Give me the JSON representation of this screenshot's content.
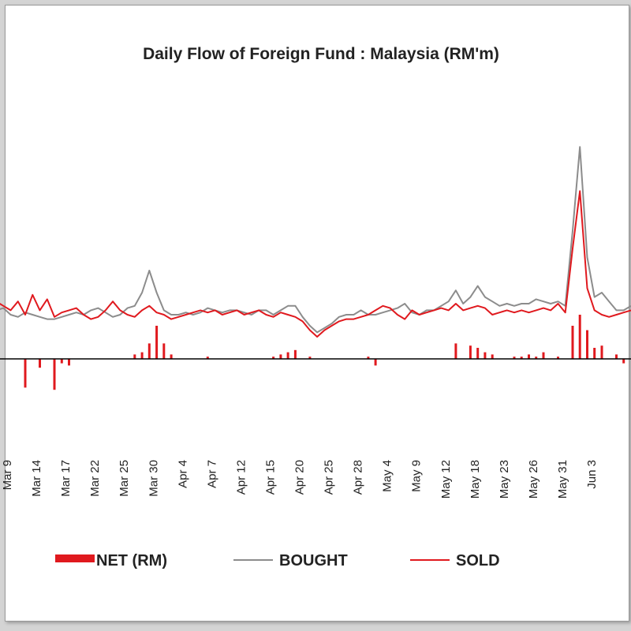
{
  "chart_data": {
    "type": "line",
    "title": "Daily Flow of Foreign Fund : Malaysia (RM'm)",
    "x_tick_labels": [
      "Mar 9",
      "Mar 14",
      "Mar 17",
      "Mar 22",
      "Mar 25",
      "Mar 30",
      "Apr 4",
      "Apr 7",
      "Apr 12",
      "Apr 15",
      "Apr 20",
      "Apr 25",
      "Apr 28",
      "May 4",
      "May 9",
      "May 12",
      "May 18",
      "May 23",
      "May 26",
      "May 31",
      "Jun 3"
    ],
    "legend": {
      "position": "bottom",
      "entries": [
        "NET (RM)",
        "BOUGHT",
        "SOLD"
      ]
    },
    "colors": {
      "net": "#e0191e",
      "bought": "#8c8c8c",
      "sold": "#e0191e"
    },
    "series": [
      {
        "name": "BOUGHT",
        "kind": "line",
        "values": [
          1100,
          1150,
          1000,
          950,
          1050,
          1000,
          950,
          900,
          900,
          950,
          1000,
          1050,
          1000,
          1100,
          1150,
          1050,
          950,
          1000,
          1150,
          1200,
          1500,
          2000,
          1500,
          1100,
          1000,
          1000,
          1050,
          1000,
          1050,
          1150,
          1100,
          1050,
          1100,
          1100,
          1050,
          1000,
          1100,
          1100,
          1000,
          1100,
          1200,
          1200,
          950,
          750,
          600,
          700,
          800,
          950,
          1000,
          1000,
          1100,
          1000,
          1000,
          1050,
          1100,
          1150,
          1250,
          1050,
          1000,
          1100,
          1100,
          1200,
          1300,
          1550,
          1250,
          1400,
          1650,
          1400,
          1300,
          1200,
          1250,
          1200,
          1250,
          1250,
          1350,
          1300,
          1250,
          1300,
          1200,
          2900,
          4800,
          2300,
          1400,
          1500,
          1300,
          1100,
          1100,
          1200
        ]
      },
      {
        "name": "SOLD",
        "kind": "line",
        "values": [
          1300,
          1200,
          1100,
          1300,
          1000,
          1450,
          1100,
          1350,
          950,
          1050,
          1100,
          1150,
          1000,
          900,
          950,
          1100,
          1300,
          1100,
          1000,
          950,
          1100,
          1200,
          1050,
          1000,
          900,
          950,
          1000,
          1050,
          1100,
          1050,
          1100,
          1000,
          1050,
          1100,
          1000,
          1050,
          1100,
          1000,
          950,
          1050,
          1000,
          950,
          850,
          650,
          500,
          650,
          750,
          850,
          900,
          900,
          950,
          1000,
          1100,
          1200,
          1150,
          1000,
          900,
          1100,
          1000,
          1050,
          1100,
          1150,
          1100,
          1250,
          1100,
          1150,
          1200,
          1150,
          1000,
          1050,
          1100,
          1050,
          1100,
          1050,
          1100,
          1150,
          1100,
          1250,
          1050,
          2500,
          3800,
          1600,
          1100,
          1000,
          950,
          1000,
          1050,
          1100
        ]
      },
      {
        "name": "NET (RM)",
        "kind": "bar",
        "values": [
          0,
          0,
          0,
          0,
          -650,
          0,
          -200,
          0,
          -700,
          -100,
          -150,
          0,
          0,
          0,
          0,
          0,
          0,
          0,
          0,
          100,
          150,
          350,
          750,
          350,
          100,
          0,
          0,
          0,
          0,
          50,
          0,
          0,
          0,
          0,
          0,
          0,
          0,
          0,
          50,
          100,
          150,
          200,
          0,
          50,
          0,
          0,
          0,
          0,
          0,
          0,
          0,
          50,
          -150,
          0,
          0,
          0,
          0,
          0,
          0,
          0,
          0,
          0,
          0,
          350,
          0,
          300,
          250,
          150,
          100,
          0,
          0,
          50,
          50,
          100,
          50,
          150,
          0,
          50,
          0,
          750,
          1000,
          650,
          250,
          300,
          0,
          100,
          -100,
          0
        ]
      }
    ]
  }
}
